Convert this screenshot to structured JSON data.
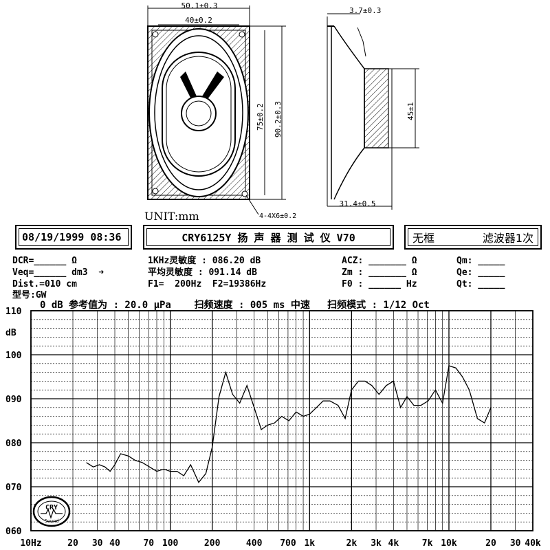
{
  "drawing": {
    "dim_width_outer": "50.1±0.3",
    "dim_width_inner": "40±0.2",
    "dim_height_inner": "75±0.2",
    "dim_height_outer": "90.2±0.3",
    "dim_holes": "4-4X6±0.2",
    "dim_side_top": "3.7±0.3",
    "dim_magnet": "45±1",
    "dim_depth": "31.4±0.5",
    "unit": "UNIT:mm"
  },
  "header": {
    "datetime": "08/19/1999 08:36",
    "instrument": "CRY6125Y 扬 声 器 测 试 仪  V70",
    "mode_left": "无框",
    "mode_right": "滤波器1次"
  },
  "params": {
    "row1_left": "DCR=______ Ω",
    "row1_mid": "1KHz灵敏度 : 086.20 dB",
    "row1_acz": "ACZ: _______ Ω",
    "row1_qm": "Qm: _____",
    "row2_left": "Veq=______ dm3  ➜",
    "row2_mid": "平均灵敏度 : 091.14 dB",
    "row2_zm": "Zm : _______ Ω",
    "row2_qe": "Qe: _____",
    "row3_left": "Dist.=010 cm",
    "row3_mid": "F1=  200Hz  F2=19386Hz",
    "row3_f0": "F0 : ______ Hz",
    "row3_qt": "Qt: _____",
    "model": "型号:GW",
    "ref_line": "0 dB 参考值为 : 20.0 μPa    扫频速度 : 005 ms 中速   扫频模式 : 1/12 Oct"
  },
  "chart_data": {
    "type": "line",
    "title": "",
    "xlabel": "",
    "ylabel": "dB",
    "x_scale": "log",
    "xlim": [
      10,
      40000
    ],
    "ylim": [
      60,
      110
    ],
    "y_ticks": [
      "110",
      "100",
      "090",
      "080",
      "070",
      "060"
    ],
    "y_unit_label": "dB",
    "x_tick_labels": [
      {
        "v": 10,
        "t": "10Hz"
      },
      {
        "v": 20,
        "t": "20"
      },
      {
        "v": 30,
        "t": "30"
      },
      {
        "v": 40,
        "t": "40"
      },
      {
        "v": 70,
        "t": "70"
      },
      {
        "v": 100,
        "t": "100"
      },
      {
        "v": 200,
        "t": "200"
      },
      {
        "v": 400,
        "t": "400"
      },
      {
        "v": 700,
        "t": "700"
      },
      {
        "v": 1000,
        "t": "1k"
      },
      {
        "v": 2000,
        "t": "2k"
      },
      {
        "v": 3000,
        "t": "3k"
      },
      {
        "v": 4000,
        "t": "4k"
      },
      {
        "v": 7000,
        "t": "7k"
      },
      {
        "v": 10000,
        "t": "10k"
      },
      {
        "v": 20000,
        "t": "20"
      },
      {
        "v": 30000,
        "t": "30"
      },
      {
        "v": 40000,
        "t": "40k"
      }
    ],
    "grid": true,
    "series": [
      {
        "x": [
          25,
          28,
          31,
          34,
          37,
          40,
          44,
          50,
          56,
          63,
          71,
          80,
          90,
          100,
          112,
          125,
          140,
          160,
          180,
          200,
          224,
          250,
          280,
          315,
          355,
          400,
          450,
          500,
          560,
          630,
          710,
          800,
          900,
          1000,
          1120,
          1250,
          1400,
          1600,
          1800,
          2000,
          2240,
          2500,
          2800,
          3150,
          3550,
          4000,
          4500,
          5000,
          5600,
          6300,
          7100,
          8000,
          9000,
          10000,
          11200,
          12500,
          14000,
          16000,
          18000,
          20000
        ],
        "y": [
          75.5,
          74.5,
          75,
          74.5,
          73.5,
          75,
          77.5,
          77,
          76,
          75.5,
          74.5,
          73.5,
          74,
          73.5,
          73.5,
          72.5,
          75,
          71,
          73,
          79,
          90.5,
          96,
          91,
          89,
          93,
          88,
          83,
          84,
          84.5,
          86,
          85,
          87,
          86,
          86.5,
          88,
          89.5,
          89.5,
          88.5,
          85.5,
          92,
          94,
          94,
          93,
          91,
          93,
          94,
          88,
          90.5,
          88.5,
          88.5,
          89.5,
          92,
          89,
          97.5,
          97,
          95,
          92,
          85.5,
          84.5,
          88
        ]
      }
    ]
  },
  "logo_text": "CRY Sound"
}
